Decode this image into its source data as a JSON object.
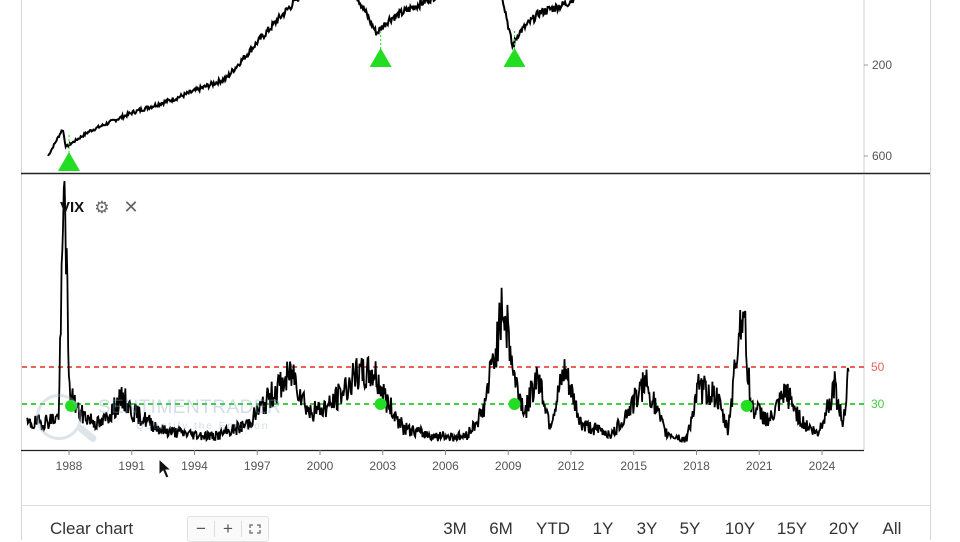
{
  "top_panel": {
    "y_ticks": [
      "600",
      "200"
    ],
    "signal_marker_color": "#22dd22",
    "signal_marker_shape": "triangle-up"
  },
  "vix_panel": {
    "title": "VIX",
    "settings_icon": "gear-icon",
    "close_icon": "close-icon",
    "reference_lines": [
      {
        "label": "50",
        "color": "#e8645a",
        "style": "dashed"
      },
      {
        "label": "30",
        "color": "#3fcf3f",
        "style": "dashed"
      }
    ],
    "signal_marker_color": "#22dd22",
    "signal_marker_shape": "circle"
  },
  "x_axis": {
    "ticks": [
      "1988",
      "1991",
      "1994",
      "1997",
      "2000",
      "2003",
      "2006",
      "2009",
      "2012",
      "2015",
      "2018",
      "2021",
      "2024"
    ]
  },
  "watermark": {
    "brand": "SENTIMENTRADER",
    "tagline": "Quantify the Emotion"
  },
  "toolbar": {
    "clear_chart_label": "Clear chart",
    "zoom_out_label": "−",
    "zoom_in_label": "+",
    "fullscreen_icon": "fullscreen-icon",
    "ranges": [
      "3M",
      "6M",
      "YTD",
      "1Y",
      "3Y",
      "5Y",
      "10Y",
      "15Y",
      "20Y",
      "All"
    ]
  },
  "chart_data": [
    {
      "type": "line",
      "title": "",
      "series": [
        {
          "values": [
            {
              "x": 1987.0,
              "y": 200
            },
            {
              "x": 1987.7,
              "y": 320
            },
            {
              "x": 1987.85,
              "y": 240
            },
            {
              "x": 1989.0,
              "y": 310
            },
            {
              "x": 1991.0,
              "y": 390
            },
            {
              "x": 1993.0,
              "y": 450
            },
            {
              "x": 1995.5,
              "y": 540
            },
            {
              "x": 1997.0,
              "y": 700
            },
            {
              "x": 1998.5,
              "y": 850
            },
            {
              "x": 2000.0,
              "y": 1000
            },
            {
              "x": 2001.5,
              "y": 950
            },
            {
              "x": 2002.7,
              "y": 740
            },
            {
              "x": 2003.3,
              "y": 800
            },
            {
              "x": 2005.0,
              "y": 880
            },
            {
              "x": 2007.0,
              "y": 980
            },
            {
              "x": 2008.6,
              "y": 960
            },
            {
              "x": 2009.2,
              "y": 680
            },
            {
              "x": 2009.5,
              "y": 740
            },
            {
              "x": 2010.5,
              "y": 830
            },
            {
              "x": 2011.8,
              "y": 870
            },
            {
              "x": 2012.4,
              "y": 920
            }
          ]
        }
      ],
      "signals_x": [
        1988.0,
        2002.9,
        2009.3
      ],
      "ylim": [
        150,
        1000
      ],
      "y_ticks": [
        200,
        600
      ]
    },
    {
      "type": "line",
      "title": "VIX",
      "series": [
        {
          "name": "VIX",
          "values": [
            {
              "x": 1986.0,
              "y": 18
            },
            {
              "x": 1987.0,
              "y": 20
            },
            {
              "x": 1987.5,
              "y": 22
            },
            {
              "x": 1987.8,
              "y": 150
            },
            {
              "x": 1988.0,
              "y": 35
            },
            {
              "x": 1988.5,
              "y": 24
            },
            {
              "x": 1989.5,
              "y": 18
            },
            {
              "x": 1990.6,
              "y": 32
            },
            {
              "x": 1991.0,
              "y": 25
            },
            {
              "x": 1992.5,
              "y": 15
            },
            {
              "x": 1994.0,
              "y": 13
            },
            {
              "x": 1995.0,
              "y": 12
            },
            {
              "x": 1996.5,
              "y": 18
            },
            {
              "x": 1997.8,
              "y": 35
            },
            {
              "x": 1998.7,
              "y": 45
            },
            {
              "x": 1999.5,
              "y": 24
            },
            {
              "x": 2000.5,
              "y": 28
            },
            {
              "x": 2001.7,
              "y": 43
            },
            {
              "x": 2002.6,
              "y": 45
            },
            {
              "x": 2003.2,
              "y": 30
            },
            {
              "x": 2004.0,
              "y": 16
            },
            {
              "x": 2005.5,
              "y": 12
            },
            {
              "x": 2007.0,
              "y": 12
            },
            {
              "x": 2007.8,
              "y": 25
            },
            {
              "x": 2008.8,
              "y": 80
            },
            {
              "x": 2009.3,
              "y": 42
            },
            {
              "x": 2009.8,
              "y": 24
            },
            {
              "x": 2010.4,
              "y": 45
            },
            {
              "x": 2011.0,
              "y": 18
            },
            {
              "x": 2011.7,
              "y": 45
            },
            {
              "x": 2012.5,
              "y": 18
            },
            {
              "x": 2014.0,
              "y": 13
            },
            {
              "x": 2015.6,
              "y": 40
            },
            {
              "x": 2016.5,
              "y": 14
            },
            {
              "x": 2017.5,
              "y": 10
            },
            {
              "x": 2018.1,
              "y": 37
            },
            {
              "x": 2018.9,
              "y": 34
            },
            {
              "x": 2019.5,
              "y": 15
            },
            {
              "x": 2020.2,
              "y": 82
            },
            {
              "x": 2020.6,
              "y": 28
            },
            {
              "x": 2021.5,
              "y": 20
            },
            {
              "x": 2022.3,
              "y": 35
            },
            {
              "x": 2023.0,
              "y": 20
            },
            {
              "x": 2023.8,
              "y": 13
            },
            {
              "x": 2024.6,
              "y": 38
            },
            {
              "x": 2025.0,
              "y": 18
            },
            {
              "x": 2025.3,
              "y": 52
            }
          ]
        }
      ],
      "reference_lines": [
        50,
        30
      ],
      "signals": [
        {
          "x": 1988.1,
          "y": 29
        },
        {
          "x": 2002.9,
          "y": 30
        },
        {
          "x": 2009.3,
          "y": 30
        },
        {
          "x": 2020.4,
          "y": 29
        }
      ],
      "ylim": [
        0,
        150
      ],
      "x_ticks": [
        1988,
        1991,
        1994,
        1997,
        2000,
        2003,
        2006,
        2009,
        2012,
        2015,
        2018,
        2021,
        2024
      ]
    }
  ]
}
